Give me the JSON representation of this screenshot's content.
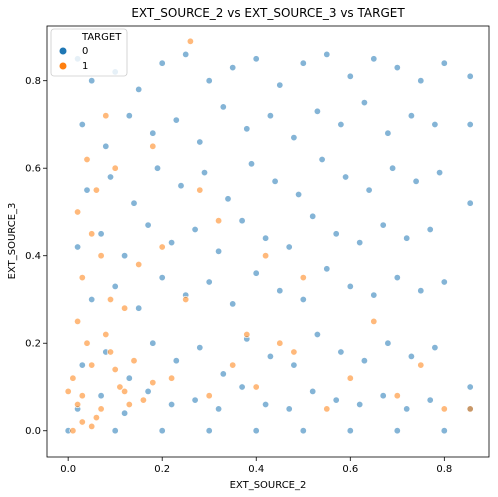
{
  "chart_data": {
    "type": "scatter",
    "title": "EXT_SOURCE_2 vs EXT_SOURCE_3 vs TARGET",
    "xlabel": "EXT_SOURCE_2",
    "ylabel": "EXT_SOURCE_3",
    "xlim": [
      -0.045,
      0.895
    ],
    "ylim": [
      -0.06,
      0.925
    ],
    "xticks": [
      0.0,
      0.2,
      0.4,
      0.6,
      0.8
    ],
    "xtick_labels": [
      "0.0",
      "0.2",
      "0.4",
      "0.6",
      "0.8"
    ],
    "yticks": [
      0.0,
      0.2,
      0.4,
      0.6,
      0.8
    ],
    "ytick_labels": [
      "0.0",
      "0.2",
      "0.4",
      "0.6",
      "0.8"
    ],
    "grid": false,
    "legend": {
      "title": "TARGET",
      "placement": "top-left",
      "entries": [
        {
          "label": "0",
          "color": "#1f77b4"
        },
        {
          "label": "1",
          "color": "#ff7f0e"
        }
      ]
    },
    "series": [
      {
        "name": "0",
        "color": "#1f77b4",
        "points": [
          [
            0.02,
            0.85
          ],
          [
            0.05,
            0.8
          ],
          [
            0.1,
            0.82
          ],
          [
            0.15,
            0.78
          ],
          [
            0.2,
            0.84
          ],
          [
            0.25,
            0.86
          ],
          [
            0.3,
            0.8
          ],
          [
            0.35,
            0.83
          ],
          [
            0.4,
            0.85
          ],
          [
            0.45,
            0.79
          ],
          [
            0.5,
            0.84
          ],
          [
            0.55,
            0.86
          ],
          [
            0.6,
            0.81
          ],
          [
            0.65,
            0.85
          ],
          [
            0.7,
            0.83
          ],
          [
            0.75,
            0.8
          ],
          [
            0.8,
            0.84
          ],
          [
            0.03,
            0.7
          ],
          [
            0.08,
            0.65
          ],
          [
            0.13,
            0.72
          ],
          [
            0.18,
            0.68
          ],
          [
            0.23,
            0.71
          ],
          [
            0.28,
            0.66
          ],
          [
            0.33,
            0.74
          ],
          [
            0.38,
            0.69
          ],
          [
            0.43,
            0.72
          ],
          [
            0.48,
            0.67
          ],
          [
            0.53,
            0.73
          ],
          [
            0.58,
            0.7
          ],
          [
            0.63,
            0.75
          ],
          [
            0.68,
            0.68
          ],
          [
            0.73,
            0.72
          ],
          [
            0.78,
            0.7
          ],
          [
            0.04,
            0.55
          ],
          [
            0.09,
            0.58
          ],
          [
            0.14,
            0.52
          ],
          [
            0.19,
            0.6
          ],
          [
            0.24,
            0.56
          ],
          [
            0.29,
            0.59
          ],
          [
            0.34,
            0.53
          ],
          [
            0.39,
            0.61
          ],
          [
            0.44,
            0.57
          ],
          [
            0.49,
            0.54
          ],
          [
            0.54,
            0.62
          ],
          [
            0.59,
            0.58
          ],
          [
            0.64,
            0.55
          ],
          [
            0.69,
            0.6
          ],
          [
            0.74,
            0.57
          ],
          [
            0.79,
            0.59
          ],
          [
            0.02,
            0.42
          ],
          [
            0.07,
            0.45
          ],
          [
            0.12,
            0.4
          ],
          [
            0.17,
            0.47
          ],
          [
            0.22,
            0.43
          ],
          [
            0.27,
            0.46
          ],
          [
            0.32,
            0.41
          ],
          [
            0.37,
            0.48
          ],
          [
            0.42,
            0.44
          ],
          [
            0.47,
            0.42
          ],
          [
            0.52,
            0.49
          ],
          [
            0.57,
            0.45
          ],
          [
            0.62,
            0.43
          ],
          [
            0.67,
            0.47
          ],
          [
            0.72,
            0.44
          ],
          [
            0.77,
            0.46
          ],
          [
            0.05,
            0.3
          ],
          [
            0.1,
            0.33
          ],
          [
            0.15,
            0.28
          ],
          [
            0.2,
            0.35
          ],
          [
            0.25,
            0.31
          ],
          [
            0.3,
            0.34
          ],
          [
            0.35,
            0.29
          ],
          [
            0.4,
            0.36
          ],
          [
            0.45,
            0.32
          ],
          [
            0.5,
            0.3
          ],
          [
            0.55,
            0.37
          ],
          [
            0.6,
            0.33
          ],
          [
            0.65,
            0.31
          ],
          [
            0.7,
            0.35
          ],
          [
            0.75,
            0.32
          ],
          [
            0.8,
            0.34
          ],
          [
            0.03,
            0.15
          ],
          [
            0.08,
            0.18
          ],
          [
            0.13,
            0.12
          ],
          [
            0.18,
            0.2
          ],
          [
            0.23,
            0.16
          ],
          [
            0.28,
            0.19
          ],
          [
            0.33,
            0.13
          ],
          [
            0.38,
            0.21
          ],
          [
            0.43,
            0.17
          ],
          [
            0.48,
            0.15
          ],
          [
            0.53,
            0.22
          ],
          [
            0.58,
            0.18
          ],
          [
            0.63,
            0.16
          ],
          [
            0.68,
            0.2
          ],
          [
            0.73,
            0.17
          ],
          [
            0.78,
            0.19
          ],
          [
            0.02,
            0.05
          ],
          [
            0.07,
            0.08
          ],
          [
            0.12,
            0.04
          ],
          [
            0.17,
            0.09
          ],
          [
            0.22,
            0.06
          ],
          [
            0.27,
            0.07
          ],
          [
            0.32,
            0.05
          ],
          [
            0.37,
            0.1
          ],
          [
            0.42,
            0.06
          ],
          [
            0.47,
            0.05
          ],
          [
            0.52,
            0.09
          ],
          [
            0.57,
            0.07
          ],
          [
            0.62,
            0.06
          ],
          [
            0.67,
            0.08
          ],
          [
            0.72,
            0.05
          ],
          [
            0.77,
            0.07
          ],
          [
            0.0,
            0.0
          ],
          [
            0.1,
            0.0
          ],
          [
            0.2,
            0.0
          ],
          [
            0.3,
            0.0
          ],
          [
            0.4,
            0.0
          ],
          [
            0.5,
            0.0
          ],
          [
            0.6,
            0.0
          ],
          [
            0.7,
            0.0
          ],
          [
            0.8,
            0.0
          ],
          [
            0.855,
            0.81
          ],
          [
            0.855,
            0.7
          ],
          [
            0.855,
            0.52
          ],
          [
            0.855,
            0.1
          ],
          [
            0.855,
            0.05
          ]
        ]
      },
      {
        "name": "1",
        "color": "#ff7f0e",
        "points": [
          [
            0.01,
            0.12
          ],
          [
            0.03,
            0.08
          ],
          [
            0.05,
            0.15
          ],
          [
            0.07,
            0.05
          ],
          [
            0.09,
            0.18
          ],
          [
            0.11,
            0.1
          ],
          [
            0.13,
            0.06
          ],
          [
            0.04,
            0.2
          ],
          [
            0.06,
            0.03
          ],
          [
            0.08,
            0.22
          ],
          [
            0.02,
            0.25
          ],
          [
            0.1,
            0.14
          ],
          [
            0.12,
            0.09
          ],
          [
            0.14,
            0.16
          ],
          [
            0.16,
            0.07
          ],
          [
            0.18,
            0.11
          ],
          [
            0.03,
            0.35
          ],
          [
            0.07,
            0.4
          ],
          [
            0.05,
            0.45
          ],
          [
            0.09,
            0.3
          ],
          [
            0.12,
            0.28
          ],
          [
            0.15,
            0.38
          ],
          [
            0.02,
            0.5
          ],
          [
            0.06,
            0.55
          ],
          [
            0.1,
            0.6
          ],
          [
            0.2,
            0.42
          ],
          [
            0.25,
            0.3
          ],
          [
            0.22,
            0.12
          ],
          [
            0.3,
            0.08
          ],
          [
            0.35,
            0.15
          ],
          [
            0.4,
            0.1
          ],
          [
            0.28,
            0.55
          ],
          [
            0.18,
            0.65
          ],
          [
            0.08,
            0.72
          ],
          [
            0.04,
            0.62
          ],
          [
            0.26,
            0.89
          ],
          [
            0.45,
            0.2
          ],
          [
            0.5,
            0.35
          ],
          [
            0.55,
            0.05
          ],
          [
            0.6,
            0.12
          ],
          [
            0.65,
            0.25
          ],
          [
            0.7,
            0.08
          ],
          [
            0.75,
            0.15
          ],
          [
            0.8,
            0.05
          ],
          [
            0.32,
            0.48
          ],
          [
            0.38,
            0.22
          ],
          [
            0.42,
            0.4
          ],
          [
            0.48,
            0.18
          ],
          [
            0.01,
            0.0
          ],
          [
            0.03,
            0.02
          ],
          [
            0.05,
            0.01
          ],
          [
            0.02,
            0.06
          ],
          [
            0.0,
            0.09
          ],
          [
            0.855,
            0.05
          ]
        ]
      }
    ]
  }
}
